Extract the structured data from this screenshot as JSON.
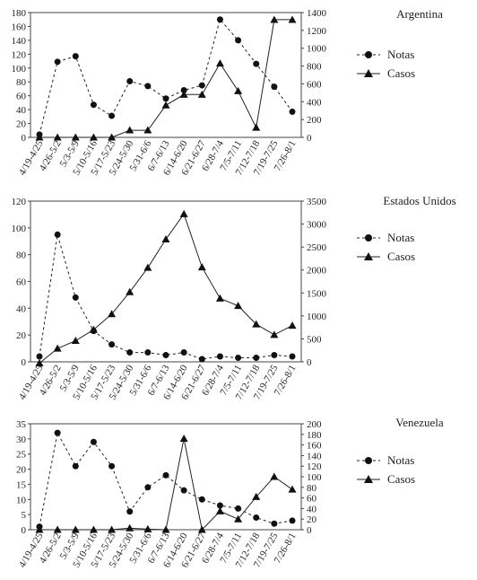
{
  "chart_data": [
    {
      "type": "line",
      "title": "Argentina",
      "categories": [
        "4/19-4/25",
        "4/26-5/2",
        "5/3-5/9",
        "5/10-5/16",
        "5/17-5/23",
        "5/24-5/30",
        "5/31-6/6",
        "6/7-6/13",
        "6/14-6/20",
        "6/21-6/27",
        "6/28-7/4",
        "7/5-7/11",
        "7/12-7/18",
        "7/19-7/25",
        "7/26-8/1"
      ],
      "ylim_left": [
        0,
        180
      ],
      "yticks_left": [
        0,
        20,
        40,
        60,
        80,
        100,
        120,
        140,
        160,
        180
      ],
      "ylim_right": [
        0,
        1400
      ],
      "yticks_right": [
        0,
        200,
        400,
        600,
        800,
        1000,
        1200,
        1400
      ],
      "series": [
        {
          "name": "Notas",
          "axis": "left",
          "marker": "circle",
          "line": "dashed",
          "values": [
            4,
            109,
            117,
            47,
            31,
            81,
            74,
            56,
            68,
            75,
            170,
            140,
            106,
            73,
            37
          ]
        },
        {
          "name": "Casos",
          "axis": "right",
          "marker": "triangle",
          "line": "solid",
          "values": [
            0,
            0,
            0,
            0,
            0,
            80,
            80,
            360,
            480,
            480,
            830,
            520,
            110,
            1320,
            1320
          ]
        }
      ],
      "legend_position": "right"
    },
    {
      "type": "line",
      "title": "Estados Unidos",
      "categories": [
        "4/19-4/25",
        "4/26-5/2",
        "5/3-5/9",
        "5/10-5/16",
        "5/17-5/23",
        "5/24-5/30",
        "5/31-6/6",
        "6/7-6/13",
        "6/14-6/20",
        "6/21-6/27",
        "6/28-7/4",
        "7/5-7/11",
        "7/12-7/18",
        "7/19-7/25",
        "7/26-8/1"
      ],
      "ylim_left": [
        0,
        120
      ],
      "yticks_left": [
        0,
        20,
        40,
        60,
        80,
        100,
        120
      ],
      "ylim_right": [
        0,
        3500
      ],
      "yticks_right": [
        0,
        500,
        1000,
        1500,
        2000,
        2500,
        3000,
        3500
      ],
      "series": [
        {
          "name": "Notas",
          "axis": "left",
          "marker": "circle",
          "line": "dashed",
          "values": [
            4,
            95,
            48,
            23,
            13,
            7,
            7,
            5,
            7,
            2,
            4,
            3,
            3,
            5,
            4
          ]
        },
        {
          "name": "Casos",
          "axis": "right",
          "marker": "triangle",
          "line": "solid",
          "values": [
            -30,
            290,
            460,
            700,
            1040,
            1520,
            2050,
            2670,
            3220,
            2060,
            1380,
            1220,
            820,
            590,
            790
          ]
        }
      ],
      "legend_position": "right"
    },
    {
      "type": "line",
      "title": "Venezuela",
      "categories": [
        "4/19-4/25",
        "4/26-5/2",
        "5/3-5/9",
        "5/10-5/16",
        "5/17-5/23",
        "5/24-5/30",
        "5/31-6/6",
        "6/7-6/13",
        "6/14-6/20",
        "6/21-6/27",
        "6/28-7/4",
        "7/5-7/11",
        "7/12-7/18",
        "7/19-7/25",
        "7/26-8/1"
      ],
      "ylim_left": [
        0,
        35
      ],
      "yticks_left": [
        0,
        5,
        10,
        15,
        20,
        25,
        30,
        35
      ],
      "ylim_right": [
        0,
        200
      ],
      "yticks_right": [
        0,
        20,
        40,
        60,
        80,
        100,
        120,
        140,
        160,
        180,
        200
      ],
      "series": [
        {
          "name": "Notas",
          "axis": "left",
          "marker": "circle",
          "line": "dashed",
          "values": [
            1,
            32,
            21,
            29,
            21,
            6,
            14,
            18,
            13,
            10,
            8,
            7,
            4,
            2,
            3
          ]
        },
        {
          "name": "Casos",
          "axis": "right",
          "marker": "triangle",
          "line": "solid",
          "values": [
            0,
            0,
            0,
            0,
            0,
            3,
            1,
            0,
            172,
            0,
            35,
            20,
            62,
            100,
            76
          ]
        }
      ],
      "legend_position": "right"
    }
  ]
}
